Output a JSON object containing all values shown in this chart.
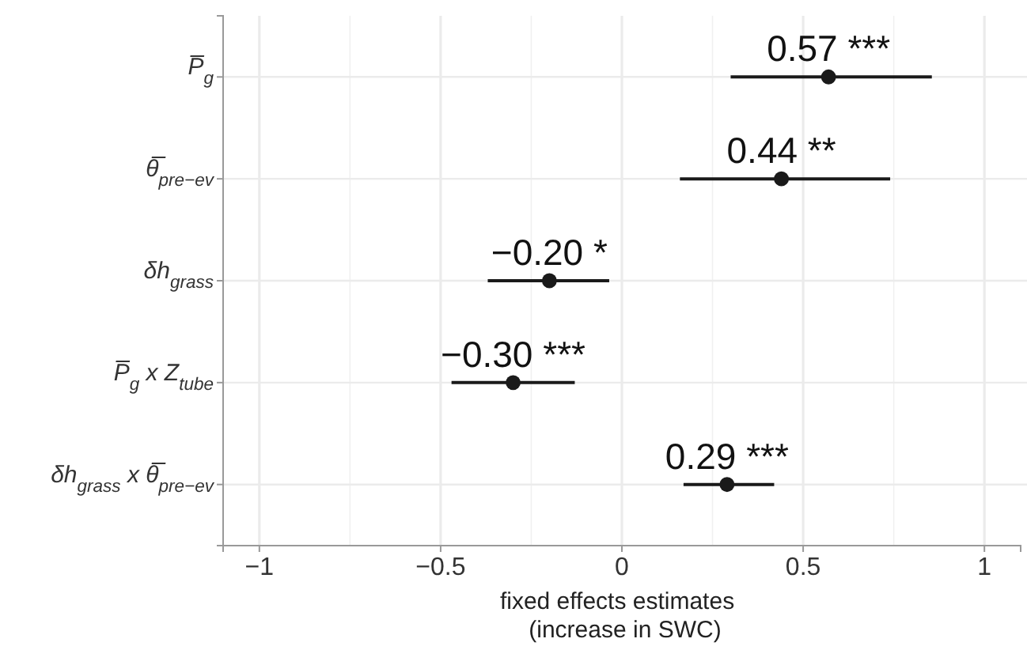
{
  "chart_data": {
    "type": "scatter",
    "orientation": "horizontal",
    "categories": [
      "P̅$_{g}$",
      "θ̅$_{pre−ev}$",
      "δh$_{grass}$",
      "P̅$_{g}$ x Z$_{tube}$",
      "δh$_{grass}$ x θ̅$_{pre−ev}$"
    ],
    "values": [
      0.57,
      0.44,
      -0.2,
      -0.3,
      0.29
    ],
    "errors": [
      [
        0.3,
        0.855
      ],
      [
        0.16,
        0.74
      ],
      [
        -0.37,
        -0.035
      ],
      [
        -0.47,
        -0.13
      ],
      [
        0.17,
        0.42
      ]
    ],
    "value_labels": [
      "0.57 ***",
      "0.44 **",
      "−0.20 *",
      "−0.30 ***",
      "0.29 ***"
    ],
    "color": "#1a1a1a",
    "marker": "circle",
    "xlabel": "fixed effects estimates\n(increase in SWC)",
    "xlim": [
      -1.1,
      1.1
    ],
    "xticks": [
      {
        "value": -1,
        "label": "−1"
      },
      {
        "value": -0.5,
        "label": "−0.5"
      },
      0,
      0.5,
      1
    ],
    "grid": true
  }
}
